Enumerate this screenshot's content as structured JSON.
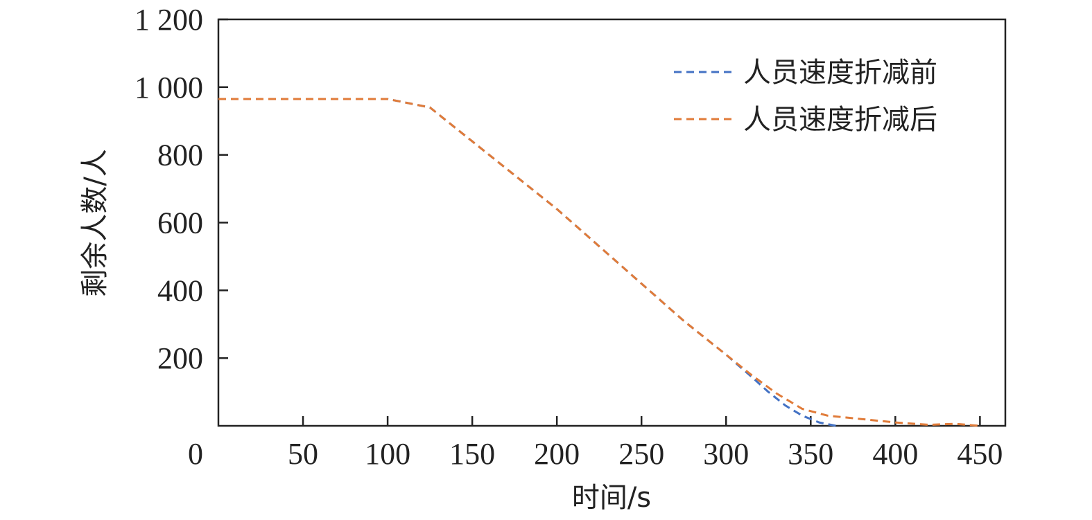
{
  "chart_data": {
    "type": "line",
    "xlabel": "时间/s",
    "ylabel": "剩余人数/人",
    "xlim": [
      0,
      465
    ],
    "ylim": [
      0,
      1200
    ],
    "xticks": [
      50,
      100,
      150,
      200,
      250,
      300,
      350,
      400,
      450
    ],
    "xtick_labels": [
      "50",
      "100",
      "150",
      "200",
      "250",
      "300",
      "350",
      "400",
      "450"
    ],
    "yticks": [
      200,
      400,
      600,
      800,
      1000,
      1200
    ],
    "ytick_labels": [
      "200",
      "400",
      "600",
      "800",
      "1 000",
      "1 200"
    ],
    "origin_label": "0",
    "grid": false,
    "legend_position": "top-right",
    "series": [
      {
        "name": "人员速度折减前",
        "color": "#4472C4",
        "dash": "dashed",
        "x": [
          0,
          100,
          125,
          150,
          200,
          250,
          275,
          300,
          315,
          325,
          335,
          345,
          355,
          365
        ],
        "y": [
          965,
          965,
          940,
          840,
          640,
          420,
          310,
          210,
          145,
          100,
          60,
          30,
          10,
          0
        ]
      },
      {
        "name": "人员速度折减后",
        "color": "#E07B39",
        "dash": "dashed",
        "x": [
          0,
          100,
          125,
          150,
          200,
          250,
          275,
          300,
          315,
          330,
          345,
          360,
          380,
          400,
          420,
          435,
          450
        ],
        "y": [
          965,
          965,
          940,
          840,
          640,
          420,
          310,
          210,
          150,
          95,
          50,
          30,
          20,
          10,
          3,
          6,
          0
        ]
      }
    ]
  }
}
